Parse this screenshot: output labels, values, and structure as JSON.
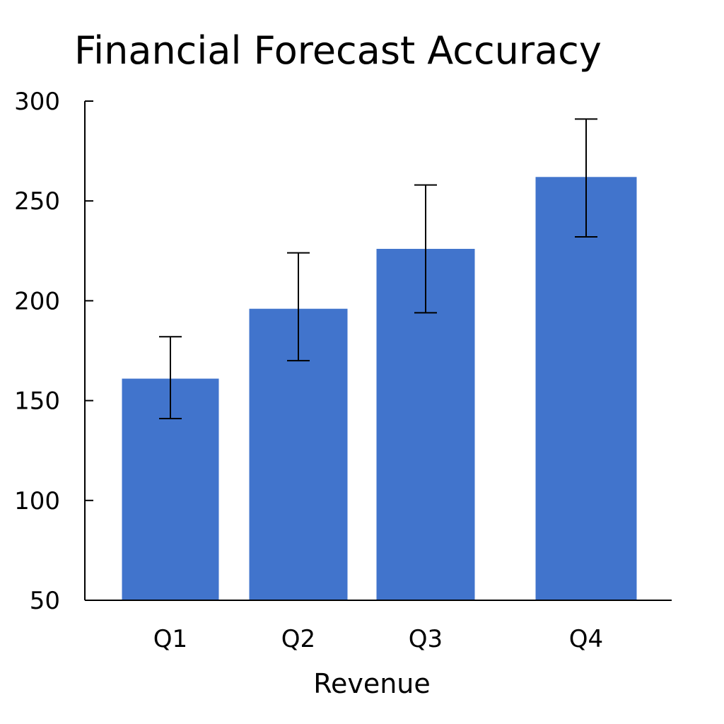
{
  "chart_data": {
    "type": "bar",
    "title": "Financial Forecast Accuracy",
    "xlabel": "Revenue",
    "ylabel": "",
    "categories": [
      "Q1",
      "Q2",
      "Q3",
      "Q4"
    ],
    "values": [
      161,
      196,
      226,
      262
    ],
    "error_low": [
      141,
      170,
      194,
      232
    ],
    "error_high": [
      182,
      224,
      258,
      291
    ],
    "ylim": [
      50,
      300
    ],
    "yticks": [
      50,
      100,
      150,
      200,
      250,
      300
    ],
    "grid": false,
    "legend": "none",
    "bar_color": "#4174CC",
    "error_bar_color": "#000000"
  }
}
